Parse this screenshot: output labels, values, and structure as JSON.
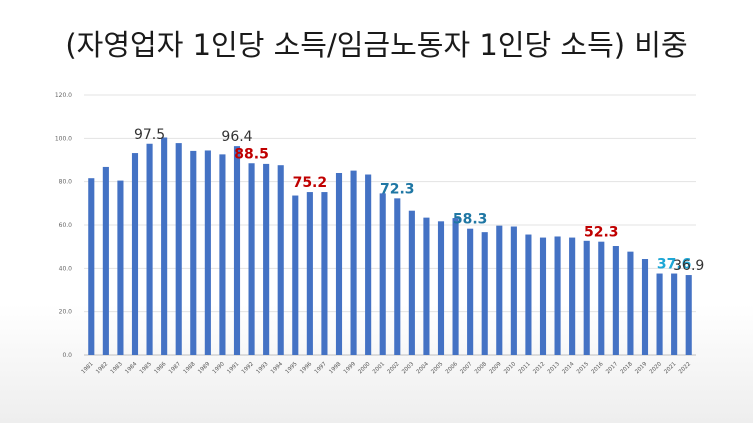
{
  "chart_data": {
    "type": "bar",
    "title": "(자영업자 1인당 소득/임금노동자 1인당 소득) 비중",
    "xlabel": "",
    "ylabel": "",
    "ylim": [
      0,
      120
    ],
    "yticks": [
      0,
      20,
      40,
      60,
      80,
      100,
      120
    ],
    "ytick_labels": [
      "0.0",
      "20.0",
      "40.0",
      "60.0",
      "80.0",
      "100.0",
      "120.0"
    ],
    "grid": true,
    "legend": "none",
    "bar_color": "#4472c4",
    "categories": [
      "1981",
      "1982",
      "1983",
      "1984",
      "1985",
      "1986",
      "1987",
      "1988",
      "1989",
      "1990",
      "1991",
      "1992",
      "1993",
      "1994",
      "1995",
      "1996",
      "1997",
      "1998",
      "1999",
      "2000",
      "2001",
      "2002",
      "2003",
      "2004",
      "2005",
      "2006",
      "2007",
      "2008",
      "2009",
      "2010",
      "2011",
      "2012",
      "2013",
      "2014",
      "2015",
      "2016",
      "2017",
      "2018",
      "2019",
      "2020",
      "2021",
      "2022"
    ],
    "values": [
      81.6,
      86.8,
      80.5,
      93.2,
      97.5,
      100.4,
      97.8,
      94.2,
      94.4,
      92.6,
      96.4,
      88.5,
      88.2,
      87.6,
      73.6,
      75.2,
      75.2,
      84.0,
      85.1,
      83.3,
      74.6,
      72.3,
      66.6,
      63.4,
      61.7,
      63.2,
      58.3,
      56.7,
      59.7,
      59.3,
      55.6,
      54.2,
      54.7,
      54.2,
      52.7,
      52.3,
      50.3,
      47.7,
      44.3,
      37.6,
      37.6,
      36.9
    ],
    "annotations": [
      {
        "label": "97.5",
        "category": "1985",
        "value": 97.5,
        "color": "#333333",
        "weight": "normal"
      },
      {
        "label": "96.4",
        "category": "1991",
        "value": 96.4,
        "color": "#333333",
        "weight": "normal"
      },
      {
        "label": "88.5",
        "category": "1992",
        "value": 88.5,
        "color": "#c00000",
        "weight": "bold"
      },
      {
        "label": "75.2",
        "category": "1996",
        "value": 75.2,
        "color": "#c00000",
        "weight": "bold"
      },
      {
        "label": "72.3",
        "category": "2002",
        "value": 72.3,
        "color": "#1f77a4",
        "weight": "bold"
      },
      {
        "label": "58.3",
        "category": "2007",
        "value": 58.3,
        "color": "#1f77a4",
        "weight": "bold"
      },
      {
        "label": "52.3",
        "category": "2016",
        "value": 52.3,
        "color": "#c00000",
        "weight": "bold"
      },
      {
        "label": "37.6",
        "category": "2021",
        "value": 37.6,
        "color": "#1ea7d6",
        "weight": "bold"
      },
      {
        "label": "36.9",
        "category": "2022",
        "value": 36.9,
        "color": "#333333",
        "weight": "normal"
      }
    ]
  }
}
